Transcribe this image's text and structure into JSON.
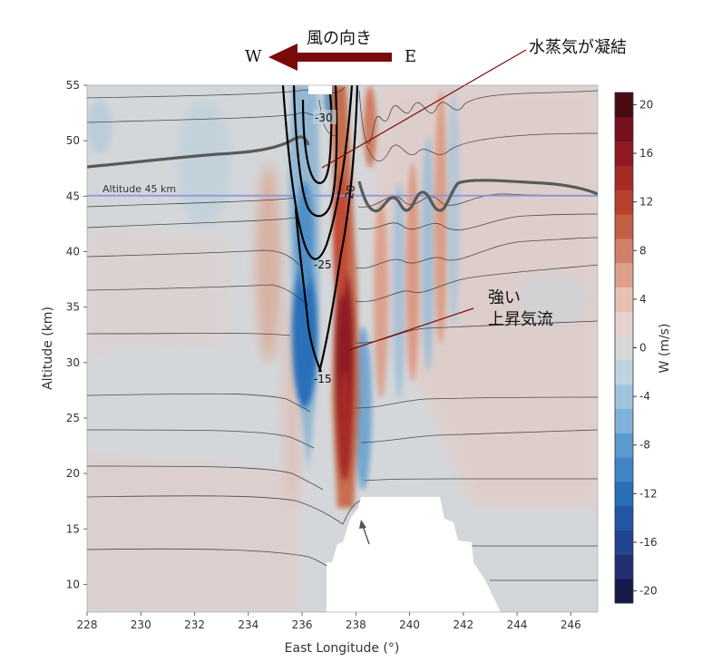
{
  "chart_data": {
    "type": "heatmap",
    "title": "",
    "xlabel": "East Longitude (°)",
    "ylabel": "Altitude (km)",
    "xlim": [
      228,
      247
    ],
    "ylim": [
      7.5,
      55
    ],
    "x_ticks": [
      "228",
      "230",
      "232",
      "234",
      "236",
      "238",
      "240",
      "242",
      "244",
      "246"
    ],
    "y_ticks": [
      "10",
      "15",
      "20",
      "25",
      "30",
      "35",
      "40",
      "45",
      "50",
      "55"
    ],
    "colorbar": {
      "label": "W (m/s)",
      "range": [
        -21,
        21
      ],
      "ticks": [
        "20",
        "16",
        "12",
        "8",
        "4",
        "0",
        "-4",
        "-8",
        "-12",
        "-16",
        "-20"
      ],
      "levels": [
        -21,
        -19,
        -17,
        -15,
        -13,
        -11,
        -9,
        -7,
        -5,
        -3,
        -1,
        1,
        3,
        5,
        7,
        9,
        11,
        13,
        15,
        17,
        19,
        21
      ],
      "colors": [
        "#161a4a",
        "#222f73",
        "#24448f",
        "#2456a6",
        "#2a6fb8",
        "#3f86c2",
        "#5c9bcb",
        "#7fb2d6",
        "#9fc4dc",
        "#bed3df",
        "#d6d8da",
        "#e6d3cf",
        "#e7c0b2",
        "#dea08a",
        "#d08068",
        "#c26148",
        "#b6422f",
        "#a52a25",
        "#8f1a21",
        "#74111d",
        "#4a0a12"
      ]
    },
    "reference_line": {
      "altitude": 45,
      "label": "Altitude 45 km",
      "color": "#8b95d8"
    },
    "contour_labels": [
      "-30",
      "-20",
      "-25",
      "-15"
    ],
    "series": [
      {
        "name": "upward-core",
        "sign": "positive",
        "longitude": 237.3,
        "altitude_range": [
          16,
          50
        ],
        "peak_w": 18
      },
      {
        "name": "downward-core",
        "sign": "negative",
        "longitude": 236.3,
        "altitude_range": [
          22,
          55
        ],
        "peak_w": -12
      },
      {
        "name": "wave-train-east",
        "sign": "alternating",
        "longitude_range": [
          238.5,
          242
        ],
        "altitude_range": [
          18,
          55
        ],
        "peak_w": 6
      }
    ]
  },
  "annotations": {
    "wind_direction": {
      "label": "風の向き",
      "west": "W",
      "east": "E"
    },
    "condensation": "水蒸気が凝結",
    "updraft_line1": "強い",
    "updraft_line2": "上昇気流"
  },
  "colors": {
    "arrow": "#7a0b0b",
    "contour": "#000000",
    "thick_line": "#555555",
    "terrain": "#ffffff"
  }
}
